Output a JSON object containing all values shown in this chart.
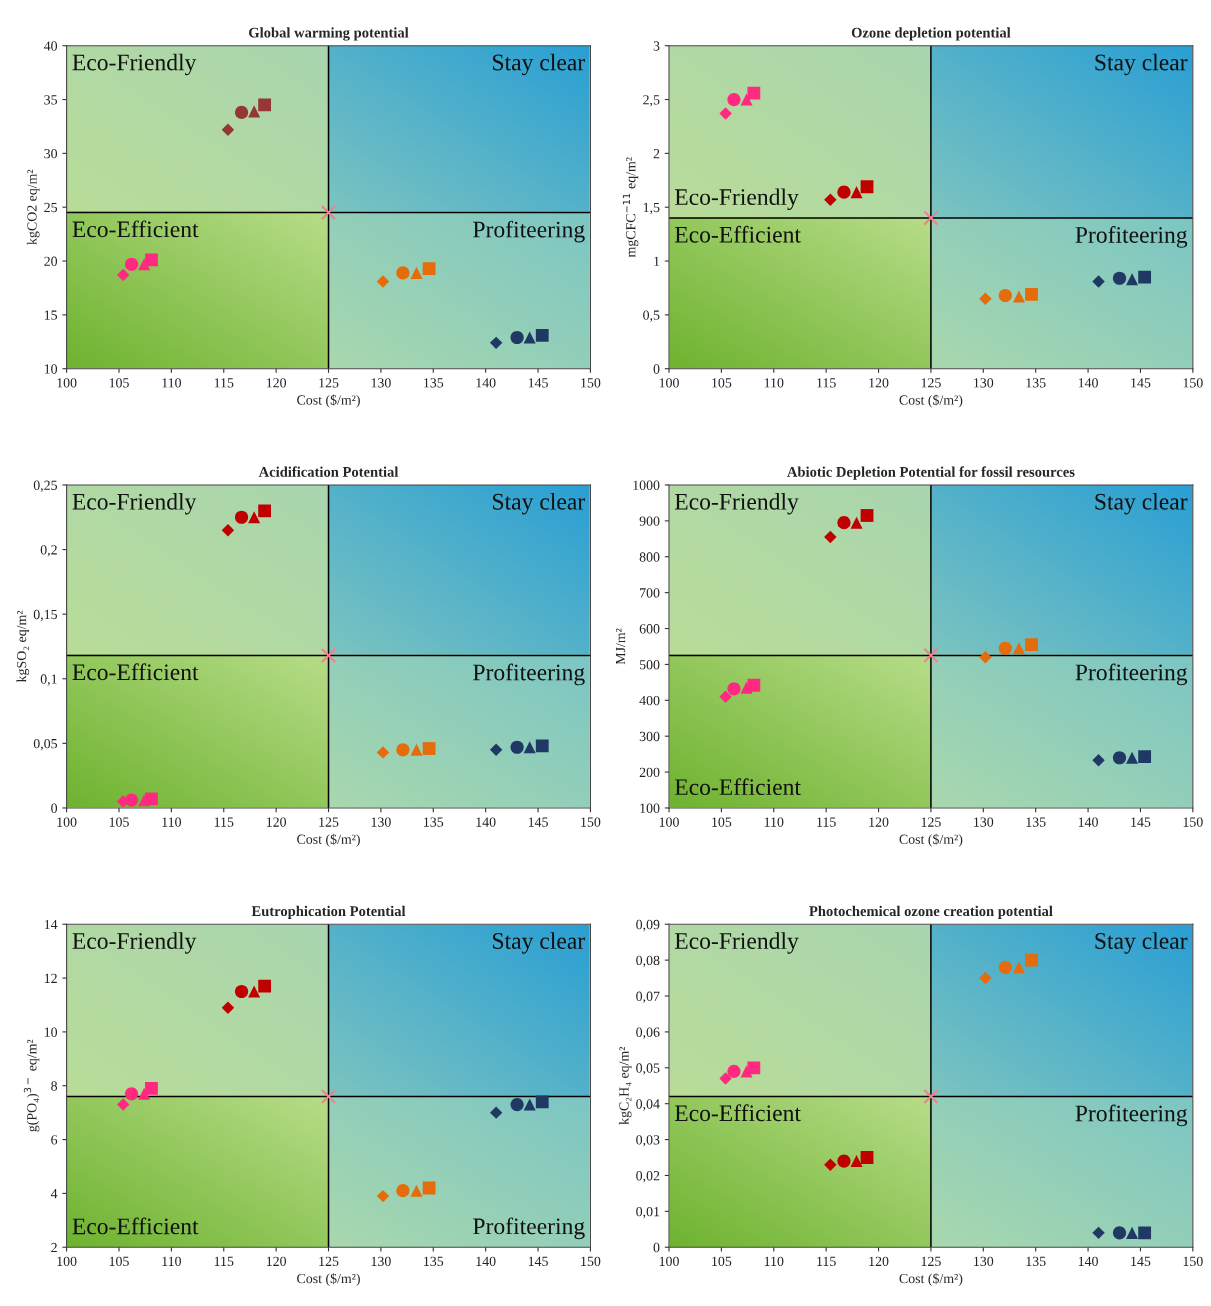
{
  "chart_data": [
    {
      "type": "scatter",
      "title": "Global warming potential",
      "xlabel": "Cost ($/m²)",
      "ylabel": "kgCO2 eq/m²",
      "xlim": [
        100,
        150
      ],
      "xticks": [
        100,
        105,
        110,
        115,
        120,
        125,
        130,
        135,
        140,
        145,
        150
      ],
      "ylim": [
        10,
        40
      ],
      "yticks": [
        10,
        15,
        20,
        25,
        30,
        35,
        40
      ],
      "grid": false,
      "legend": false,
      "ref_lines": [
        {
          "axis": "x",
          "value": 125,
          "color": "#000000"
        },
        {
          "axis": "y",
          "value": 24.5,
          "color": "#000000"
        }
      ],
      "series": [
        {
          "marker": "diamond",
          "x": [
            105.4,
            115.4,
            130.2,
            141
          ],
          "values": [
            18.7,
            32.2,
            18.1,
            12.4
          ],
          "colors": [
            "#ff2a7f",
            "#953735",
            "#e46c0a",
            "#1f3864"
          ]
        },
        {
          "marker": "circle",
          "x": [
            106.2,
            116.7,
            132.1,
            143
          ],
          "values": [
            19.7,
            33.8,
            18.9,
            12.9
          ],
          "colors": [
            "#ff2a7f",
            "#953735",
            "#e46c0a",
            "#1f3864"
          ]
        },
        {
          "marker": "triangle",
          "x": [
            107.4,
            117.9,
            133.4,
            144.2
          ],
          "values": [
            19.7,
            33.9,
            18.9,
            12.9
          ],
          "colors": [
            "#ff2a7f",
            "#953735",
            "#e46c0a",
            "#1f3864"
          ]
        },
        {
          "marker": "square",
          "x": [
            108.1,
            118.9,
            134.6,
            145.4
          ],
          "values": [
            20.1,
            34.5,
            19.3,
            13.1
          ],
          "colors": [
            "#ff2a7f",
            "#953735",
            "#e46c0a",
            "#1f3864"
          ]
        },
        {
          "marker": "cross",
          "x": [
            125
          ],
          "values": [
            24.5
          ],
          "colors": [
            "#f08090"
          ]
        }
      ],
      "annotations": [
        "Eco-Friendly",
        "Stay clear",
        "Eco-Efficient",
        "Profiteering"
      ]
    },
    {
      "type": "scatter",
      "title": "Ozone depletion potential",
      "xlabel": "Cost ($/m²)",
      "ylabel": "mgCFC$^{−11}$ eq/m²",
      "xlim": [
        100,
        150
      ],
      "xticks": [
        100,
        105,
        110,
        115,
        120,
        125,
        130,
        135,
        140,
        145,
        150
      ],
      "ylim": [
        0,
        3
      ],
      "yticks": [
        0,
        {
          "value": 0.5,
          "label": "0,5"
        },
        1,
        {
          "value": 1.5,
          "label": "1,5"
        },
        2,
        {
          "value": 2.5,
          "label": "2,5"
        },
        3
      ],
      "grid": false,
      "legend": false,
      "ref_lines": [
        {
          "axis": "x",
          "value": 125,
          "color": "#000000"
        },
        {
          "axis": "y",
          "value": 1.4,
          "color": "#000000"
        }
      ],
      "series": [
        {
          "marker": "diamond",
          "x": [
            105.4,
            115.4,
            130.2,
            141
          ],
          "values": [
            2.37,
            1.57,
            0.65,
            0.81
          ],
          "colors": [
            "#ff2a7f",
            "#c00000",
            "#e46c0a",
            "#1f3864"
          ]
        },
        {
          "marker": "circle",
          "x": [
            106.2,
            116.7,
            132.1,
            143
          ],
          "values": [
            2.5,
            1.64,
            0.68,
            0.84
          ],
          "colors": [
            "#ff2a7f",
            "#c00000",
            "#e46c0a",
            "#1f3864"
          ]
        },
        {
          "marker": "triangle",
          "x": [
            107.4,
            117.9,
            133.4,
            144.2
          ],
          "values": [
            2.5,
            1.64,
            0.67,
            0.83
          ],
          "colors": [
            "#ff2a7f",
            "#c00000",
            "#e46c0a",
            "#1f3864"
          ]
        },
        {
          "marker": "square",
          "x": [
            108.1,
            118.9,
            134.6,
            145.4
          ],
          "values": [
            2.56,
            1.69,
            0.69,
            0.85
          ],
          "colors": [
            "#ff2a7f",
            "#c00000",
            "#e46c0a",
            "#1f3864"
          ]
        },
        {
          "marker": "cross",
          "x": [
            125
          ],
          "values": [
            1.4
          ],
          "colors": [
            "#f08090"
          ]
        }
      ],
      "annotations": [
        "Eco-Friendly",
        "Stay clear",
        "Eco-Efficient",
        "Profiteering"
      ]
    },
    {
      "type": "scatter",
      "title": "Acidification Potential",
      "xlabel": "Cost ($/m²)",
      "ylabel": "kgSO₂ eq/m²",
      "xlim": [
        100,
        150
      ],
      "xticks": [
        100,
        105,
        110,
        115,
        120,
        125,
        130,
        135,
        140,
        145,
        150
      ],
      "ylim": [
        0,
        0.25
      ],
      "yticks": [
        0,
        {
          "value": 0.05,
          "label": "0,05"
        },
        {
          "value": 0.1,
          "label": "0,1"
        },
        {
          "value": 0.15,
          "label": "0,15"
        },
        {
          "value": 0.2,
          "label": "0,2"
        },
        {
          "value": 0.25,
          "label": "0,25"
        }
      ],
      "grid": false,
      "legend": false,
      "ref_lines": [
        {
          "axis": "x",
          "value": 125,
          "color": "#000000"
        },
        {
          "axis": "y",
          "value": 0.118,
          "color": "#000000"
        }
      ],
      "series": [
        {
          "marker": "diamond",
          "x": [
            105.4,
            115.4,
            130.2,
            141
          ],
          "values": [
            0.005,
            0.215,
            0.043,
            0.045
          ],
          "colors": [
            "#ff2a7f",
            "#c00000",
            "#e46c0a",
            "#1f3864"
          ]
        },
        {
          "marker": "circle",
          "x": [
            106.2,
            116.7,
            132.1,
            143
          ],
          "values": [
            0.006,
            0.225,
            0.045,
            0.047
          ],
          "colors": [
            "#ff2a7f",
            "#c00000",
            "#e46c0a",
            "#1f3864"
          ]
        },
        {
          "marker": "triangle",
          "x": [
            107.4,
            117.9,
            133.4,
            144.2
          ],
          "values": [
            0.006,
            0.225,
            0.045,
            0.047
          ],
          "colors": [
            "#ff2a7f",
            "#c00000",
            "#e46c0a",
            "#1f3864"
          ]
        },
        {
          "marker": "square",
          "x": [
            108.1,
            118.9,
            134.6,
            145.4
          ],
          "values": [
            0.007,
            0.23,
            0.046,
            0.048
          ],
          "colors": [
            "#ff2a7f",
            "#c00000",
            "#e46c0a",
            "#1f3864"
          ]
        },
        {
          "marker": "cross",
          "x": [
            125
          ],
          "values": [
            0.118
          ],
          "colors": [
            "#f08090"
          ]
        }
      ],
      "annotations": [
        "Eco-Friendly",
        "Stay clear",
        "Eco-Efficient",
        "Profiteering"
      ]
    },
    {
      "type": "scatter",
      "title": "Abiotic Depletion Potential for fossil resources",
      "xlabel": "Cost ($/m²)",
      "ylabel": "MJ/m²",
      "xlim": [
        100,
        150
      ],
      "xticks": [
        100,
        105,
        110,
        115,
        120,
        125,
        130,
        135,
        140,
        145,
        150
      ],
      "ylim": [
        100,
        1000
      ],
      "yticks": [
        100,
        200,
        300,
        400,
        500,
        600,
        700,
        800,
        900,
        1000
      ],
      "grid": false,
      "legend": false,
      "ref_lines": [
        {
          "axis": "x",
          "value": 125,
          "color": "#000000"
        },
        {
          "axis": "y",
          "value": 525,
          "color": "#000000"
        }
      ],
      "series": [
        {
          "marker": "diamond",
          "x": [
            105.4,
            115.4,
            130.2,
            141
          ],
          "values": [
            410,
            855,
            520,
            233
          ],
          "colors": [
            "#ff2a7f",
            "#c00000",
            "#e46c0a",
            "#1f3864"
          ]
        },
        {
          "marker": "circle",
          "x": [
            106.2,
            116.7,
            132.1,
            143
          ],
          "values": [
            432,
            895,
            545,
            240
          ],
          "colors": [
            "#ff2a7f",
            "#c00000",
            "#e46c0a",
            "#1f3864"
          ]
        },
        {
          "marker": "triangle",
          "x": [
            107.4,
            117.9,
            133.4,
            144.2
          ],
          "values": [
            435,
            895,
            545,
            240
          ],
          "colors": [
            "#ff2a7f",
            "#c00000",
            "#e46c0a",
            "#1f3864"
          ]
        },
        {
          "marker": "square",
          "x": [
            108.1,
            118.9,
            134.6,
            145.4
          ],
          "values": [
            442,
            915,
            555,
            243
          ],
          "colors": [
            "#ff2a7f",
            "#c00000",
            "#e46c0a",
            "#1f3864"
          ]
        },
        {
          "marker": "cross",
          "x": [
            125
          ],
          "values": [
            525
          ],
          "colors": [
            "#f08090"
          ]
        }
      ],
      "annotations": [
        "Eco-Friendly",
        "Stay clear",
        "Eco-Efficient",
        "Profiteering"
      ]
    },
    {
      "type": "scatter",
      "title": "Eutrophication Potential",
      "xlabel": "Cost ($/m²)",
      "ylabel": "g(PO₄)$^{3−}$ eq/m²",
      "xlim": [
        100,
        150
      ],
      "xticks": [
        100,
        105,
        110,
        115,
        120,
        125,
        130,
        135,
        140,
        145,
        150
      ],
      "ylim": [
        2,
        14
      ],
      "yticks": [
        2,
        4,
        6,
        8,
        10,
        12,
        14
      ],
      "grid": false,
      "legend": false,
      "ref_lines": [
        {
          "axis": "x",
          "value": 125,
          "color": "#000000"
        },
        {
          "axis": "y",
          "value": 7.6,
          "color": "#000000"
        }
      ],
      "series": [
        {
          "marker": "diamond",
          "x": [
            105.4,
            115.4,
            130.2,
            141
          ],
          "values": [
            7.3,
            10.9,
            3.9,
            7.0
          ],
          "colors": [
            "#ff2a7f",
            "#c00000",
            "#e46c0a",
            "#1f3864"
          ]
        },
        {
          "marker": "circle",
          "x": [
            106.2,
            116.7,
            132.1,
            143
          ],
          "values": [
            7.7,
            11.5,
            4.1,
            7.3
          ],
          "colors": [
            "#ff2a7f",
            "#c00000",
            "#e46c0a",
            "#1f3864"
          ]
        },
        {
          "marker": "triangle",
          "x": [
            107.4,
            117.9,
            133.4,
            144.2
          ],
          "values": [
            7.7,
            11.5,
            4.1,
            7.3
          ],
          "colors": [
            "#ff2a7f",
            "#c00000",
            "#e46c0a",
            "#1f3864"
          ]
        },
        {
          "marker": "square",
          "x": [
            108.1,
            118.9,
            134.6,
            145.4
          ],
          "values": [
            7.9,
            11.7,
            4.2,
            7.4
          ],
          "colors": [
            "#ff2a7f",
            "#c00000",
            "#e46c0a",
            "#1f3864"
          ]
        },
        {
          "marker": "cross",
          "x": [
            125
          ],
          "values": [
            7.6
          ],
          "colors": [
            "#f08090"
          ]
        }
      ],
      "annotations": [
        "Eco-Friendly",
        "Stay clear",
        "Eco-Efficient",
        "Profiteering"
      ]
    },
    {
      "type": "scatter",
      "title": "Photochemical ozone creation potential",
      "xlabel": "Cost ($/m²)",
      "ylabel": "kgC₂H₄ eq/m²",
      "xlim": [
        100,
        150
      ],
      "xticks": [
        100,
        105,
        110,
        115,
        120,
        125,
        130,
        135,
        140,
        145,
        150
      ],
      "ylim": [
        0,
        0.09
      ],
      "yticks": [
        0,
        {
          "value": 0.01,
          "label": "0,01"
        },
        {
          "value": 0.02,
          "label": "0,02"
        },
        {
          "value": 0.03,
          "label": "0,03"
        },
        {
          "value": 0.04,
          "label": "0,04"
        },
        {
          "value": 0.05,
          "label": "0,05"
        },
        {
          "value": 0.06,
          "label": "0,06"
        },
        {
          "value": 0.07,
          "label": "0,07"
        },
        {
          "value": 0.08,
          "label": "0,08"
        },
        {
          "value": 0.09,
          "label": "0,09"
        }
      ],
      "grid": false,
      "legend": false,
      "ref_lines": [
        {
          "axis": "x",
          "value": 125,
          "color": "#000000"
        },
        {
          "axis": "y",
          "value": 0.042,
          "color": "#000000"
        }
      ],
      "series": [
        {
          "marker": "diamond",
          "x": [
            105.4,
            115.4,
            130.2,
            141
          ],
          "values": [
            0.047,
            0.023,
            0.075,
            0.004
          ],
          "colors": [
            "#ff2a7f",
            "#c00000",
            "#e46c0a",
            "#1f3864"
          ]
        },
        {
          "marker": "circle",
          "x": [
            106.2,
            116.7,
            132.1,
            143
          ],
          "values": [
            0.049,
            0.024,
            0.078,
            0.004
          ],
          "colors": [
            "#ff2a7f",
            "#c00000",
            "#e46c0a",
            "#1f3864"
          ]
        },
        {
          "marker": "triangle",
          "x": [
            107.4,
            117.9,
            133.4,
            144.2
          ],
          "values": [
            0.049,
            0.024,
            0.078,
            0.004
          ],
          "colors": [
            "#ff2a7f",
            "#c00000",
            "#e46c0a",
            "#1f3864"
          ]
        },
        {
          "marker": "square",
          "x": [
            108.1,
            118.9,
            134.6,
            145.4
          ],
          "values": [
            0.05,
            0.025,
            0.08,
            0.004
          ],
          "colors": [
            "#ff2a7f",
            "#c00000",
            "#e46c0a",
            "#1f3864"
          ]
        },
        {
          "marker": "cross",
          "x": [
            125
          ],
          "values": [
            0.042
          ],
          "colors": [
            "#f08090"
          ]
        }
      ],
      "annotations": [
        "Eco-Friendly",
        "Stay clear",
        "Eco-Efficient",
        "Profiteering"
      ]
    }
  ]
}
